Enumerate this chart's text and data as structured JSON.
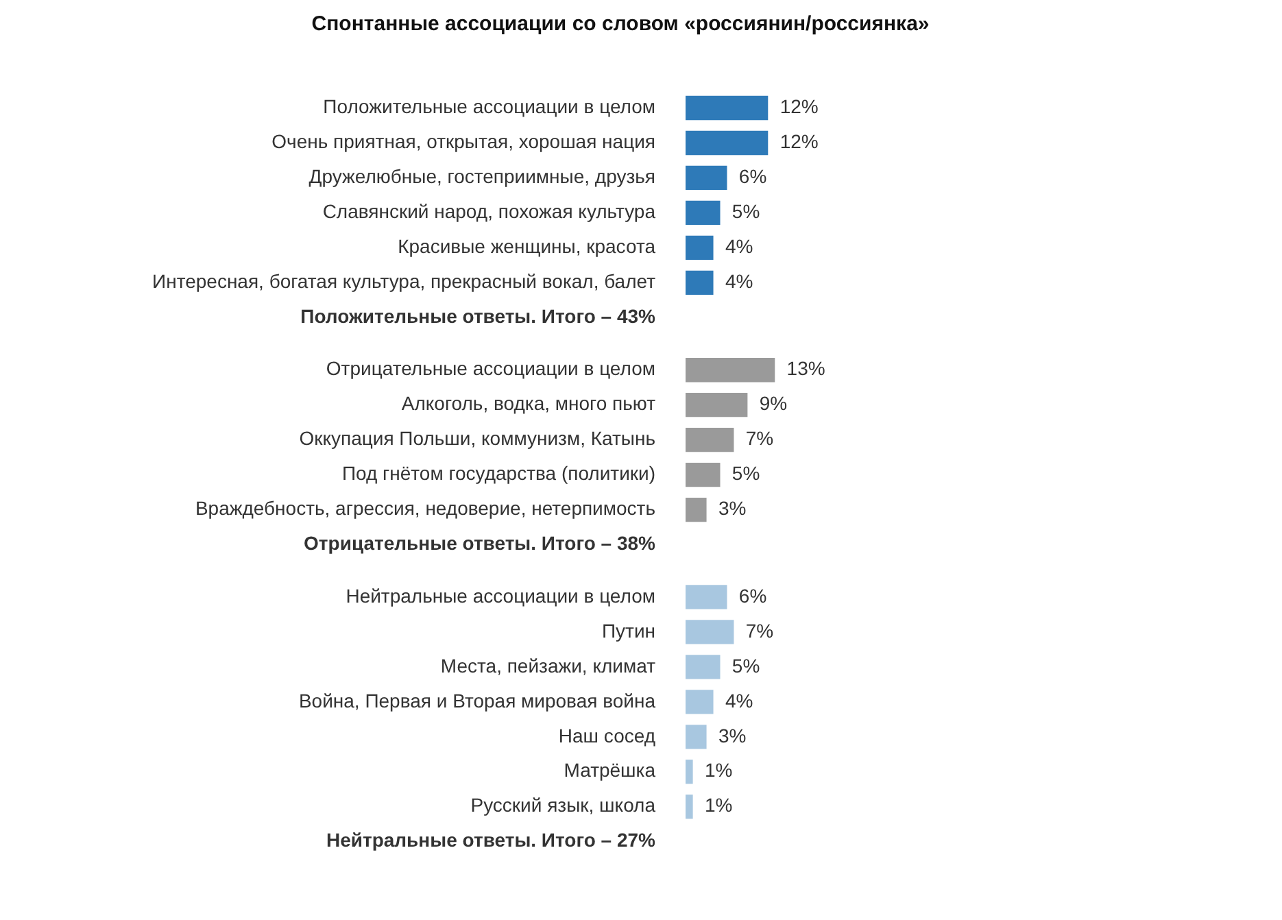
{
  "chart_data": {
    "type": "bar",
    "orientation": "horizontal",
    "title": "Спонтанные ассоциации со словом «россиянин/россиянка»",
    "categories": [
      "Положительные ассоциации в целом",
      "Очень приятная, открытая, хорошая нация",
      "Дружелюбные, гостеприимные, друзья",
      "Славянский народ, похожая культура",
      "Красивые женщины, красота",
      "Интересная, богатая культура, прекрасный вокал, балет",
      "Положительные ответы. Итого – 43%",
      "Отрицательные ассоциации в целом",
      "Алкоголь, водка, много пьют",
      "Оккупация Польши, коммунизм, Катынь",
      "Под гнётом государства (политики)",
      "Враждебность, агрессия, недоверие, нетерпимость",
      "Отрицательные ответы. Итого – 38%",
      "Нейтральные ассоциации в целом",
      "Путин",
      "Места, пейзажи, климат",
      "Война, Первая и Вторая мировая война",
      "Наш сосед",
      "Матрёшка",
      "Русский язык, школа",
      "Нейтральные ответы. Итого – 27%"
    ],
    "values": [
      12,
      12,
      6,
      5,
      4,
      4,
      null,
      13,
      9,
      7,
      5,
      3,
      null,
      6,
      7,
      5,
      4,
      3,
      1,
      1,
      null
    ],
    "value_labels": [
      "12%",
      "12%",
      "6%",
      "5%",
      "4%",
      "4%",
      null,
      "13%",
      "9%",
      "7%",
      "5%",
      "3%",
      null,
      "6%",
      "7%",
      "5%",
      "4%",
      "3%",
      "1%",
      "1%",
      null
    ],
    "colors": [
      "#2e7ab8",
      "#2e7ab8",
      "#2e7ab8",
      "#2e7ab8",
      "#2e7ab8",
      "#2e7ab8",
      null,
      "#9a9a9a",
      "#9a9a9a",
      "#9a9a9a",
      "#9a9a9a",
      "#9a9a9a",
      null,
      "#a8c7e0",
      "#a8c7e0",
      "#a8c7e0",
      "#a8c7e0",
      "#a8c7e0",
      "#a8c7e0",
      "#a8c7e0",
      null
    ],
    "tick_labels": "y"
  }
}
